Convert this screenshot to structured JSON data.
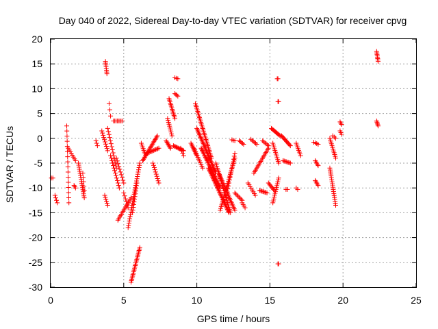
{
  "chart_data": {
    "type": "scatter",
    "title": "Day 040 of 2022, Sidereal Day-to-day VTEC variation (SDTVAR) for receiver cpvg",
    "xlabel": "GPS time / hours",
    "ylabel": "SDTVAR / TECUs",
    "xlim": [
      0,
      25
    ],
    "ylim": [
      -30,
      20
    ],
    "xticks": [
      "0",
      "5",
      "10",
      "15",
      "20",
      "25"
    ],
    "yticks": [
      "20",
      "15",
      "10",
      "5",
      "0",
      "-5",
      "-10",
      "-15",
      "-20",
      "-25",
      "-30"
    ],
    "grid": true,
    "marker": "plus",
    "color": "#ff0000",
    "series": [
      {
        "name": "SDTVAR",
        "segments": [
          {
            "x0": 0.05,
            "x1": 0.15,
            "y0": -8.0,
            "y1": -8.0,
            "n": 2
          },
          {
            "x0": 0.3,
            "x1": 0.45,
            "y0": -11.5,
            "y1": -13.0,
            "n": 4
          },
          {
            "x0": 1.1,
            "x1": 1.25,
            "y0": 2.5,
            "y1": -13.0,
            "n": 16
          },
          {
            "x0": 1.2,
            "x1": 1.7,
            "y0": -2.0,
            "y1": -4.5,
            "n": 8
          },
          {
            "x0": 1.6,
            "x1": 1.7,
            "y0": -9.5,
            "y1": -10.0,
            "n": 3
          },
          {
            "x0": 1.9,
            "x1": 2.3,
            "y0": -5.0,
            "y1": -12.0,
            "n": 18
          },
          {
            "x0": 2.2,
            "x1": 2.3,
            "y0": -7.0,
            "y1": -10.5,
            "n": 5
          },
          {
            "x0": 3.1,
            "x1": 3.2,
            "y0": -0.5,
            "y1": -1.5,
            "n": 3
          },
          {
            "x0": 3.5,
            "x1": 3.9,
            "y0": 1.5,
            "y1": -2.5,
            "n": 10
          },
          {
            "x0": 3.7,
            "x1": 3.9,
            "y0": -11.5,
            "y1": -13.5,
            "n": 6
          },
          {
            "x0": 3.75,
            "x1": 3.85,
            "y0": 15.5,
            "y1": 13.0,
            "n": 8
          },
          {
            "x0": 4.0,
            "x1": 4.1,
            "y0": 7.0,
            "y1": 4.5,
            "n": 3
          },
          {
            "x0": 3.9,
            "x1": 4.5,
            "y0": 2.0,
            "y1": -6.0,
            "n": 14
          },
          {
            "x0": 4.3,
            "x1": 4.9,
            "y0": 3.5,
            "y1": 3.5,
            "n": 8
          },
          {
            "x0": 4.1,
            "x1": 4.7,
            "y0": -3.5,
            "y1": -10.0,
            "n": 14
          },
          {
            "x0": 4.5,
            "x1": 5.0,
            "y0": -4.0,
            "y1": -9.0,
            "n": 10
          },
          {
            "x0": 4.6,
            "x1": 5.5,
            "y0": -16.5,
            "y1": -12.0,
            "n": 16
          },
          {
            "x0": 5.0,
            "x1": 5.3,
            "y0": -11.0,
            "y1": -14.0,
            "n": 6
          },
          {
            "x0": 5.3,
            "x1": 6.1,
            "y0": -18.0,
            "y1": -5.0,
            "n": 30
          },
          {
            "x0": 5.6,
            "x1": 5.9,
            "y0": -15.0,
            "y1": -9.0,
            "n": 12
          },
          {
            "x0": 5.5,
            "x1": 6.1,
            "y0": -29.0,
            "y1": -22.0,
            "n": 24
          },
          {
            "x0": 6.2,
            "x1": 6.5,
            "y0": -1.0,
            "y1": -3.5,
            "n": 8
          },
          {
            "x0": 6.3,
            "x1": 7.3,
            "y0": -4.5,
            "y1": 0.5,
            "n": 22
          },
          {
            "x0": 6.6,
            "x1": 7.4,
            "y0": -3.0,
            "y1": -2.0,
            "n": 12
          },
          {
            "x0": 7.0,
            "x1": 7.4,
            "y0": -5.0,
            "y1": -9.0,
            "n": 10
          },
          {
            "x0": 7.9,
            "x1": 8.2,
            "y0": -0.5,
            "y1": -2.0,
            "n": 8
          },
          {
            "x0": 8.1,
            "x1": 8.5,
            "y0": 8.0,
            "y1": 4.0,
            "n": 14
          },
          {
            "x0": 8.0,
            "x1": 8.3,
            "y0": 4.0,
            "y1": 0.5,
            "n": 10
          },
          {
            "x0": 8.5,
            "x1": 8.7,
            "y0": 9.0,
            "y1": 8.5,
            "n": 4
          },
          {
            "x0": 8.5,
            "x1": 8.7,
            "y0": 12.2,
            "y1": 12.0,
            "n": 3
          },
          {
            "x0": 8.4,
            "x1": 9.1,
            "y0": -1.5,
            "y1": -2.5,
            "n": 12
          },
          {
            "x0": 8.9,
            "x1": 9.1,
            "y0": -2.0,
            "y1": -3.5,
            "n": 4
          },
          {
            "x0": 9.6,
            "x1": 10.0,
            "y0": -1.0,
            "y1": -3.5,
            "n": 10
          },
          {
            "x0": 9.8,
            "x1": 10.4,
            "y0": -2.0,
            "y1": -6.0,
            "n": 12
          },
          {
            "x0": 9.9,
            "x1": 11.0,
            "y0": 7.0,
            "y1": -4.0,
            "n": 36
          },
          {
            "x0": 10.0,
            "x1": 11.3,
            "y0": 2.0,
            "y1": -7.0,
            "n": 36
          },
          {
            "x0": 10.3,
            "x1": 11.6,
            "y0": -2.0,
            "y1": -10.0,
            "n": 36
          },
          {
            "x0": 10.8,
            "x1": 12.2,
            "y0": -6.0,
            "y1": -15.0,
            "n": 40
          },
          {
            "x0": 11.3,
            "x1": 12.3,
            "y0": -5.0,
            "y1": -15.0,
            "n": 30
          },
          {
            "x0": 11.5,
            "x1": 12.6,
            "y0": -7.0,
            "y1": -14.5,
            "n": 26
          },
          {
            "x0": 11.6,
            "x1": 12.6,
            "y0": -14.5,
            "y1": -4.0,
            "n": 30
          },
          {
            "x0": 12.0,
            "x1": 12.6,
            "y0": -12.0,
            "y1": -3.0,
            "n": 16
          },
          {
            "x0": 12.4,
            "x1": 12.6,
            "y0": -0.3,
            "y1": -0.5,
            "n": 3
          },
          {
            "x0": 12.9,
            "x1": 13.2,
            "y0": -0.5,
            "y1": -1.2,
            "n": 5
          },
          {
            "x0": 12.6,
            "x1": 13.1,
            "y0": -11.0,
            "y1": -12.5,
            "n": 8
          },
          {
            "x0": 13.1,
            "x1": 13.3,
            "y0": -13.0,
            "y1": -14.0,
            "n": 4
          },
          {
            "x0": 13.7,
            "x1": 14.1,
            "y0": -0.2,
            "y1": -1.2,
            "n": 6
          },
          {
            "x0": 13.5,
            "x1": 14.0,
            "y0": -9.0,
            "y1": -11.5,
            "n": 8
          },
          {
            "x0": 13.9,
            "x1": 14.9,
            "y0": -7.0,
            "y1": -2.0,
            "n": 18
          },
          {
            "x0": 14.3,
            "x1": 14.8,
            "y0": -10.5,
            "y1": -11.0,
            "n": 8
          },
          {
            "x0": 14.5,
            "x1": 14.9,
            "y0": -0.5,
            "y1": -1.5,
            "n": 6
          },
          {
            "x0": 14.9,
            "x1": 15.3,
            "y0": -9.0,
            "y1": -10.5,
            "n": 8
          },
          {
            "x0": 15.1,
            "x1": 15.7,
            "y0": 2.0,
            "y1": 0.5,
            "n": 12
          },
          {
            "x0": 15.2,
            "x1": 15.6,
            "y0": -1.0,
            "y1": -5.0,
            "n": 12
          },
          {
            "x0": 15.2,
            "x1": 15.6,
            "y0": -13.0,
            "y1": -8.0,
            "n": 14
          },
          {
            "x0": 15.5,
            "x1": 15.55,
            "y0": 12.0,
            "y1": 12.0,
            "n": 2
          },
          {
            "x0": 15.55,
            "x1": 15.6,
            "y0": 7.4,
            "y1": 7.4,
            "n": 2
          },
          {
            "x0": 15.55,
            "x1": 15.6,
            "y0": -25.3,
            "y1": -25.3,
            "n": 2
          },
          {
            "x0": 15.8,
            "x1": 16.4,
            "y0": 0.5,
            "y1": -1.5,
            "n": 12
          },
          {
            "x0": 15.9,
            "x1": 16.4,
            "y0": -4.5,
            "y1": -5.0,
            "n": 8
          },
          {
            "x0": 16.1,
            "x1": 16.2,
            "y0": -10.3,
            "y1": -10.3,
            "n": 2
          },
          {
            "x0": 16.8,
            "x1": 17.1,
            "y0": -1.0,
            "y1": -3.5,
            "n": 8
          },
          {
            "x0": 16.8,
            "x1": 16.9,
            "y0": -10.0,
            "y1": -10.3,
            "n": 2
          },
          {
            "x0": 18.0,
            "x1": 18.3,
            "y0": -0.8,
            "y1": -1.2,
            "n": 4
          },
          {
            "x0": 18.1,
            "x1": 18.3,
            "y0": -4.5,
            "y1": -5.5,
            "n": 5
          },
          {
            "x0": 18.1,
            "x1": 18.3,
            "y0": -8.5,
            "y1": -9.5,
            "n": 5
          },
          {
            "x0": 19.1,
            "x1": 19.5,
            "y0": 0.0,
            "y1": -4.0,
            "n": 12
          },
          {
            "x0": 19.1,
            "x1": 19.5,
            "y0": -6.0,
            "y1": -13.5,
            "n": 20
          },
          {
            "x0": 19.3,
            "x1": 19.5,
            "y0": 0.5,
            "y1": 0.0,
            "n": 3
          },
          {
            "x0": 19.8,
            "x1": 19.9,
            "y0": 3.3,
            "y1": 2.8,
            "n": 3
          },
          {
            "x0": 19.8,
            "x1": 19.9,
            "y0": 1.5,
            "y1": 0.8,
            "n": 3
          },
          {
            "x0": 22.3,
            "x1": 22.4,
            "y0": 17.5,
            "y1": 15.5,
            "n": 8
          },
          {
            "x0": 22.3,
            "x1": 22.4,
            "y0": 3.5,
            "y1": 2.5,
            "n": 5
          }
        ]
      }
    ]
  }
}
